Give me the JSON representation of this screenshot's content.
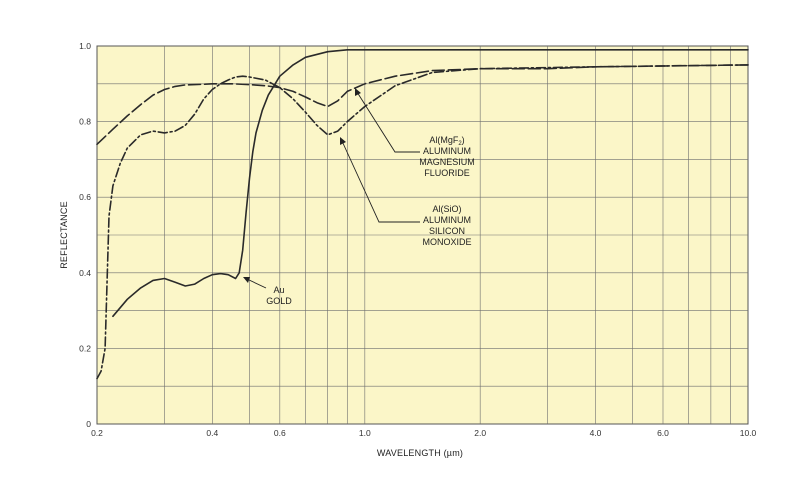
{
  "chart_data": {
    "type": "line",
    "title": "",
    "xlabel": "WAVELENGTH (µm)",
    "ylabel": "REFLECTANCE",
    "x_scale": "log",
    "xlim": [
      0.2,
      10.0
    ],
    "ylim": [
      0,
      1.0
    ],
    "grid": true,
    "x_tick_values": [
      0.2,
      0.4,
      0.6,
      1.0,
      2.0,
      4.0,
      6.0,
      10.0
    ],
    "x_tick_labels": [
      "0.2",
      "0.4",
      "0.6",
      "1.0",
      "2.0",
      "4.0",
      "6.0",
      "10.0"
    ],
    "y_tick_values": [
      0,
      0.2,
      0.4,
      0.6,
      0.8,
      1.0
    ],
    "y_tick_labels": [
      "0",
      "0.2",
      "0.4",
      "0.6",
      "0.8",
      "1.0"
    ],
    "colors": {
      "plot_background": "#fbf6c8",
      "grid": "#6e6e6e",
      "curve": "#2a2a2a"
    },
    "series": [
      {
        "style": "solid",
        "x": [
          0.22,
          0.24,
          0.26,
          0.28,
          0.3,
          0.32,
          0.34,
          0.36,
          0.38,
          0.4,
          0.42,
          0.44,
          0.46,
          0.47,
          0.48,
          0.49,
          0.5,
          0.51,
          0.52,
          0.54,
          0.56,
          0.6,
          0.65,
          0.7,
          0.8,
          0.9,
          1.0,
          2.0,
          4.0,
          10.0
        ],
        "y": [
          0.285,
          0.33,
          0.36,
          0.38,
          0.385,
          0.375,
          0.365,
          0.37,
          0.385,
          0.395,
          0.398,
          0.395,
          0.385,
          0.4,
          0.46,
          0.56,
          0.65,
          0.72,
          0.77,
          0.83,
          0.87,
          0.92,
          0.95,
          0.97,
          0.985,
          0.99,
          0.99,
          0.99,
          0.99,
          0.99
        ]
      },
      {
        "style": "dash-dot",
        "x": [
          0.2,
          0.205,
          0.21,
          0.215,
          0.22,
          0.23,
          0.24,
          0.26,
          0.28,
          0.3,
          0.32,
          0.34,
          0.36,
          0.38,
          0.4,
          0.42,
          0.44,
          0.46,
          0.48,
          0.5,
          0.55,
          0.6,
          0.65,
          0.7,
          0.75,
          0.8,
          0.85,
          0.9,
          1.0,
          1.2,
          1.5,
          2.0,
          4.0,
          10.0
        ],
        "y": [
          0.12,
          0.14,
          0.2,
          0.55,
          0.63,
          0.69,
          0.73,
          0.765,
          0.775,
          0.77,
          0.775,
          0.79,
          0.82,
          0.86,
          0.885,
          0.9,
          0.91,
          0.918,
          0.92,
          0.918,
          0.91,
          0.89,
          0.86,
          0.825,
          0.79,
          0.765,
          0.775,
          0.8,
          0.84,
          0.895,
          0.93,
          0.94,
          0.945,
          0.95
        ]
      },
      {
        "style": "long-dash",
        "x": [
          0.2,
          0.22,
          0.24,
          0.26,
          0.28,
          0.3,
          0.32,
          0.34,
          0.36,
          0.4,
          0.45,
          0.5,
          0.55,
          0.6,
          0.65,
          0.7,
          0.75,
          0.8,
          0.85,
          0.9,
          1.0,
          1.2,
          1.5,
          2.0,
          3.0,
          4.0,
          10.0
        ],
        "y": [
          0.74,
          0.78,
          0.815,
          0.845,
          0.87,
          0.885,
          0.893,
          0.897,
          0.898,
          0.9,
          0.9,
          0.898,
          0.895,
          0.89,
          0.88,
          0.865,
          0.85,
          0.84,
          0.855,
          0.88,
          0.9,
          0.92,
          0.935,
          0.94,
          0.94,
          0.945,
          0.95
        ]
      }
    ],
    "annotations": [
      {
        "lines": [
          "Au",
          "GOLD"
        ]
      },
      {
        "lines": [
          "Al(MgF",
          "2",
          ")",
          "ALUMINUM",
          "MAGNESIUM",
          "FLUORIDE"
        ]
      },
      {
        "lines": [
          "Al(SiO)",
          "ALUMINUM",
          "SILICON",
          "MONOXIDE"
        ]
      }
    ]
  }
}
